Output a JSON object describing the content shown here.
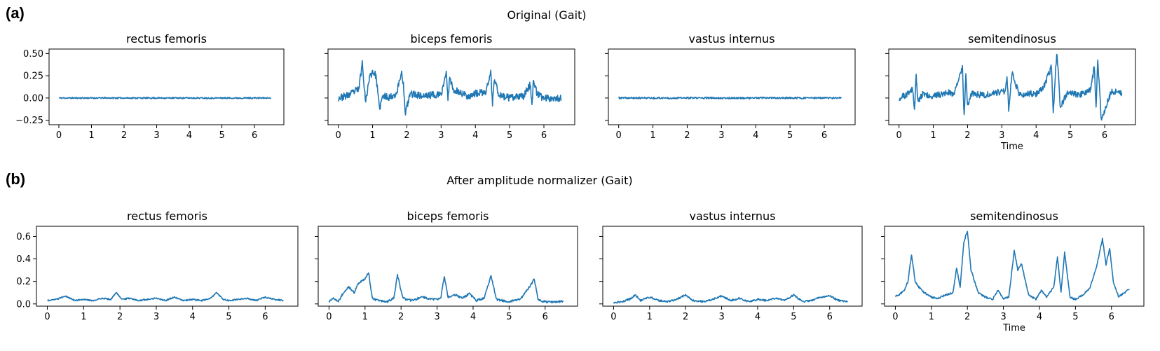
{
  "row_a": {
    "label": "(a)",
    "suptitle": "Original (Gait)"
  },
  "row_b": {
    "label": "(b)",
    "suptitle": "After amplitude normalizer (Gait)"
  },
  "line_color": "#1f77b4",
  "chart_data": [
    {
      "type": "line",
      "row": "a",
      "title": "rectus femoris",
      "xlabel": "",
      "ylabel": "",
      "xlim": [
        -0.3,
        6.9
      ],
      "ylim": [
        -0.3,
        0.55
      ],
      "yticks": [
        -0.25,
        0.0,
        0.25,
        0.5
      ],
      "ytick_labels": [
        "−0.25",
        "0.00",
        "0.25",
        "0.50"
      ],
      "xticks": [
        0,
        1,
        2,
        3,
        4,
        5,
        6
      ],
      "x": [
        0,
        0.5,
        1,
        1.5,
        2,
        2.5,
        3,
        3.5,
        4,
        4.5,
        5,
        5.5,
        6,
        6.5
      ],
      "y": [
        0.0,
        0.0,
        0.0,
        0.0,
        0.0,
        0.0,
        0.0,
        0.0,
        0.0,
        0.0,
        0.0,
        0.0,
        0.0,
        0.0
      ],
      "noise": 0.008,
      "seed": 11
    },
    {
      "type": "line",
      "row": "a",
      "title": "biceps femoris",
      "xlabel": "",
      "ylabel": "",
      "xlim": [
        -0.3,
        6.9
      ],
      "ylim": [
        -0.3,
        0.55
      ],
      "yticks": [
        -0.25,
        0.0,
        0.25,
        0.5
      ],
      "ytick_labels": [
        "",
        "",
        "",
        ""
      ],
      "xticks": [
        0,
        1,
        2,
        3,
        4,
        5,
        6
      ],
      "x": [
        0,
        0.1,
        0.3,
        0.5,
        0.6,
        0.7,
        0.8,
        0.9,
        1.0,
        1.1,
        1.2,
        1.3,
        1.5,
        1.7,
        1.85,
        1.9,
        1.95,
        2.1,
        2.5,
        2.8,
        3.0,
        3.15,
        3.2,
        3.25,
        3.35,
        3.5,
        3.8,
        4.0,
        4.3,
        4.45,
        4.5,
        4.55,
        4.7,
        5.0,
        5.4,
        5.6,
        5.65,
        5.7,
        5.8,
        6.0,
        6.5
      ],
      "y": [
        0.0,
        0.01,
        0.03,
        0.08,
        0.1,
        0.4,
        -0.05,
        0.22,
        0.3,
        0.25,
        -0.12,
        0.02,
        0.01,
        0.05,
        0.3,
        0.15,
        -0.18,
        0.05,
        0.02,
        0.04,
        0.03,
        0.3,
        -0.05,
        0.25,
        0.1,
        0.07,
        0.02,
        0.05,
        0.06,
        0.29,
        -0.08,
        0.21,
        0.03,
        0.0,
        0.02,
        0.15,
        -0.07,
        0.22,
        0.04,
        0.0,
        0.0
      ],
      "noise": 0.04,
      "seed": 23
    },
    {
      "type": "line",
      "row": "a",
      "title": "vastus internus",
      "xlabel": "",
      "ylabel": "",
      "xlim": [
        -0.3,
        6.9
      ],
      "ylim": [
        -0.3,
        0.55
      ],
      "yticks": [
        -0.25,
        0.0,
        0.25,
        0.5
      ],
      "ytick_labels": [
        "",
        "",
        "",
        ""
      ],
      "xticks": [
        0,
        1,
        2,
        3,
        4,
        5,
        6
      ],
      "x": [
        0,
        0.5,
        1,
        1.5,
        2,
        2.5,
        3,
        3.5,
        4,
        4.5,
        5,
        5.5,
        6,
        6.5
      ],
      "y": [
        0.0,
        0.0,
        0.0,
        0.0,
        0.0,
        0.0,
        0.0,
        0.0,
        0.0,
        0.0,
        0.0,
        0.0,
        0.0,
        0.0
      ],
      "noise": 0.01,
      "seed": 37
    },
    {
      "type": "line",
      "row": "a",
      "title": "semitendinosus",
      "xlabel": "Time",
      "ylabel": "",
      "xlim": [
        -0.3,
        6.9
      ],
      "ylim": [
        -0.3,
        0.55
      ],
      "yticks": [
        -0.25,
        0.0,
        0.25,
        0.5
      ],
      "ytick_labels": [
        "",
        "",
        "",
        ""
      ],
      "xticks": [
        0,
        1,
        2,
        3,
        4,
        5,
        6
      ],
      "x": [
        0,
        0.2,
        0.4,
        0.45,
        0.5,
        0.55,
        0.7,
        1.0,
        1.4,
        1.6,
        1.7,
        1.85,
        1.9,
        1.95,
        2.0,
        2.1,
        2.5,
        2.8,
        3.1,
        3.15,
        3.2,
        3.3,
        3.5,
        4.0,
        4.2,
        4.45,
        4.5,
        4.6,
        4.65,
        4.7,
        4.9,
        5.3,
        5.6,
        5.7,
        5.75,
        5.8,
        5.9,
        6.2,
        6.5
      ],
      "y": [
        0.0,
        0.03,
        0.1,
        -0.15,
        0.28,
        -0.05,
        0.05,
        0.02,
        0.06,
        0.05,
        0.15,
        0.35,
        -0.2,
        0.3,
        -0.1,
        0.05,
        0.03,
        0.06,
        0.08,
        0.25,
        -0.12,
        0.3,
        0.04,
        0.05,
        0.1,
        0.35,
        -0.18,
        0.5,
        0.3,
        -0.1,
        0.05,
        0.04,
        0.1,
        0.35,
        -0.12,
        0.45,
        -0.25,
        0.08,
        0.05
      ],
      "noise": 0.035,
      "seed": 51
    },
    {
      "type": "line",
      "row": "b",
      "title": "rectus femoris",
      "xlabel": "",
      "ylabel": "",
      "xlim": [
        -0.3,
        6.9
      ],
      "ylim": [
        -0.02,
        0.69
      ],
      "yticks": [
        0.0,
        0.2,
        0.4,
        0.6
      ],
      "ytick_labels": [
        "0.0",
        "0.2",
        "0.4",
        "0.6"
      ],
      "xticks": [
        0,
        1,
        2,
        3,
        4,
        5,
        6
      ],
      "x": [
        0,
        0.25,
        0.5,
        0.75,
        1.0,
        1.25,
        1.5,
        1.75,
        1.9,
        2.05,
        2.25,
        2.5,
        2.75,
        3.0,
        3.25,
        3.5,
        3.75,
        4.0,
        4.25,
        4.5,
        4.65,
        4.85,
        5.0,
        5.25,
        5.5,
        5.75,
        6.0,
        6.25,
        6.5
      ],
      "y": [
        0.03,
        0.04,
        0.07,
        0.03,
        0.04,
        0.03,
        0.05,
        0.04,
        0.1,
        0.04,
        0.05,
        0.03,
        0.04,
        0.05,
        0.03,
        0.06,
        0.03,
        0.04,
        0.03,
        0.05,
        0.1,
        0.04,
        0.03,
        0.04,
        0.05,
        0.03,
        0.06,
        0.04,
        0.03
      ],
      "noise": 0.006,
      "seed": 61
    },
    {
      "type": "line",
      "row": "b",
      "title": "biceps femoris",
      "xlabel": "",
      "ylabel": "",
      "xlim": [
        -0.3,
        6.9
      ],
      "ylim": [
        -0.02,
        0.69
      ],
      "yticks": [
        0.0,
        0.2,
        0.4,
        0.6
      ],
      "ytick_labels": [
        "",
        "",
        "",
        ""
      ],
      "xticks": [
        0,
        1,
        2,
        3,
        4,
        5,
        6
      ],
      "x": [
        0,
        0.1,
        0.25,
        0.4,
        0.55,
        0.7,
        0.8,
        0.9,
        1.0,
        1.1,
        1.2,
        1.35,
        1.6,
        1.8,
        1.9,
        2.05,
        2.3,
        2.6,
        2.9,
        3.1,
        3.2,
        3.3,
        3.5,
        3.7,
        3.9,
        4.1,
        4.3,
        4.5,
        4.65,
        4.8,
        5.0,
        5.3,
        5.5,
        5.7,
        5.8,
        5.95,
        6.2,
        6.5
      ],
      "y": [
        0.02,
        0.05,
        0.02,
        0.1,
        0.15,
        0.1,
        0.18,
        0.2,
        0.22,
        0.28,
        0.05,
        0.03,
        0.02,
        0.05,
        0.26,
        0.05,
        0.03,
        0.06,
        0.04,
        0.05,
        0.25,
        0.06,
        0.08,
        0.05,
        0.09,
        0.03,
        0.05,
        0.25,
        0.04,
        0.03,
        0.02,
        0.04,
        0.12,
        0.22,
        0.04,
        0.02,
        0.02,
        0.02
      ],
      "noise": 0.01,
      "seed": 71
    },
    {
      "type": "line",
      "row": "b",
      "title": "vastus internus",
      "xlabel": "",
      "ylabel": "",
      "xlim": [
        -0.3,
        6.9
      ],
      "ylim": [
        -0.02,
        0.69
      ],
      "yticks": [
        0.0,
        0.2,
        0.4,
        0.6
      ],
      "ytick_labels": [
        "",
        "",
        "",
        ""
      ],
      "xticks": [
        0,
        1,
        2,
        3,
        4,
        5,
        6
      ],
      "x": [
        0,
        0.25,
        0.5,
        0.6,
        0.75,
        1.0,
        1.25,
        1.5,
        1.75,
        2.0,
        2.2,
        2.5,
        2.75,
        3.0,
        3.25,
        3.5,
        3.75,
        4.0,
        4.25,
        4.5,
        4.75,
        5.0,
        5.25,
        5.5,
        5.75,
        6.0,
        6.25,
        6.5
      ],
      "y": [
        0.01,
        0.02,
        0.05,
        0.08,
        0.03,
        0.06,
        0.03,
        0.02,
        0.04,
        0.08,
        0.03,
        0.02,
        0.04,
        0.07,
        0.03,
        0.05,
        0.02,
        0.04,
        0.03,
        0.05,
        0.03,
        0.08,
        0.02,
        0.03,
        0.06,
        0.07,
        0.03,
        0.02
      ],
      "noise": 0.008,
      "seed": 83
    },
    {
      "type": "line",
      "row": "b",
      "title": "semitendinosus",
      "xlabel": "Time",
      "ylabel": "",
      "xlim": [
        -0.3,
        6.9
      ],
      "ylim": [
        -0.02,
        0.69
      ],
      "yticks": [
        0.0,
        0.2,
        0.4,
        0.6
      ],
      "ytick_labels": [
        "",
        "",
        "",
        ""
      ],
      "xticks": [
        0,
        1,
        2,
        3,
        4,
        5,
        6
      ],
      "x": [
        0,
        0.1,
        0.25,
        0.35,
        0.45,
        0.55,
        0.65,
        0.8,
        1.0,
        1.2,
        1.4,
        1.6,
        1.7,
        1.8,
        1.9,
        2.0,
        2.1,
        2.3,
        2.5,
        2.7,
        2.85,
        3.0,
        3.15,
        3.3,
        3.4,
        3.5,
        3.7,
        3.9,
        4.05,
        4.2,
        4.4,
        4.5,
        4.6,
        4.7,
        4.85,
        5.0,
        5.2,
        5.4,
        5.6,
        5.75,
        5.85,
        5.95,
        6.05,
        6.2,
        6.35,
        6.5
      ],
      "y": [
        0.07,
        0.08,
        0.12,
        0.2,
        0.44,
        0.2,
        0.15,
        0.1,
        0.06,
        0.05,
        0.08,
        0.1,
        0.32,
        0.15,
        0.55,
        0.65,
        0.3,
        0.1,
        0.06,
        0.04,
        0.12,
        0.05,
        0.06,
        0.47,
        0.3,
        0.36,
        0.08,
        0.04,
        0.12,
        0.06,
        0.15,
        0.42,
        0.1,
        0.46,
        0.06,
        0.04,
        0.08,
        0.14,
        0.35,
        0.58,
        0.35,
        0.5,
        0.2,
        0.06,
        0.1,
        0.13
      ],
      "noise": 0.008,
      "seed": 97
    }
  ]
}
